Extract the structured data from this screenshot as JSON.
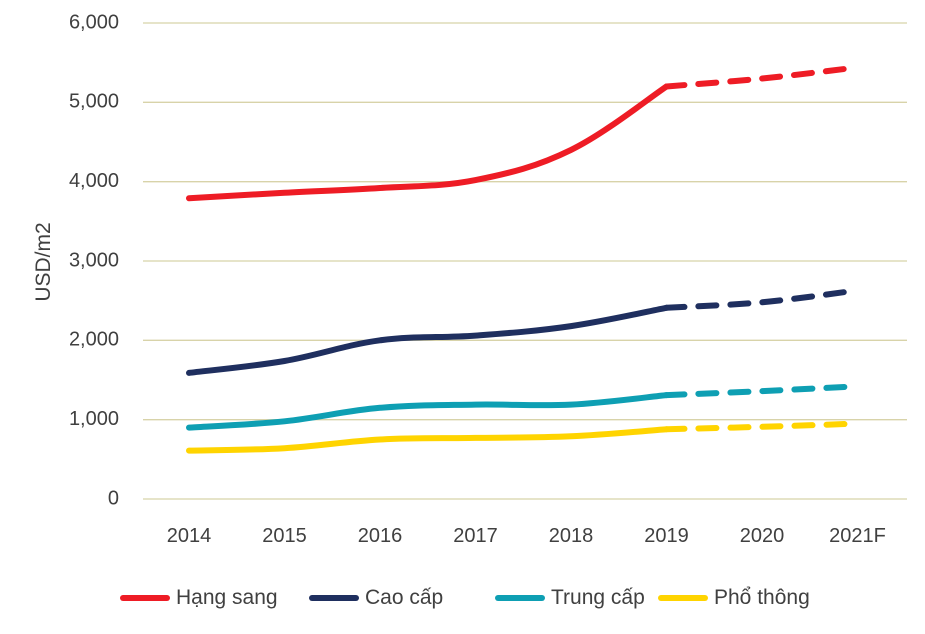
{
  "chart_data": {
    "type": "line",
    "title": "",
    "xlabel": "",
    "ylabel": "USD/m2",
    "categories": [
      "2014",
      "2015",
      "2016",
      "2017",
      "2018",
      "2019",
      "2020",
      "2021F"
    ],
    "ylim": [
      0,
      6000
    ],
    "yticks": [
      0,
      1000,
      2000,
      3000,
      4000,
      5000,
      6000
    ],
    "ytick_labels": [
      "0",
      "1,000",
      "2,000",
      "3,000",
      "4,000",
      "5,000",
      "6,000"
    ],
    "forecast_starts_after": "2019",
    "grid": "horizontal",
    "legend_position": "bottom",
    "series": [
      {
        "name": "Hạng sang",
        "color": "#ee1c25",
        "values": [
          3790,
          3860,
          3920,
          4020,
          4400,
          5200,
          5300,
          5440
        ]
      },
      {
        "name": "Cao cấp",
        "color": "#1f2f5f",
        "values": [
          1590,
          1740,
          2000,
          2060,
          2180,
          2410,
          2480,
          2630
        ]
      },
      {
        "name": "Trung cấp",
        "color": "#0e9fb3",
        "values": [
          900,
          980,
          1150,
          1190,
          1190,
          1310,
          1360,
          1420
        ]
      },
      {
        "name": "Phổ thông",
        "color": "#ffd400",
        "values": [
          610,
          640,
          750,
          770,
          790,
          880,
          910,
          950
        ]
      }
    ]
  }
}
